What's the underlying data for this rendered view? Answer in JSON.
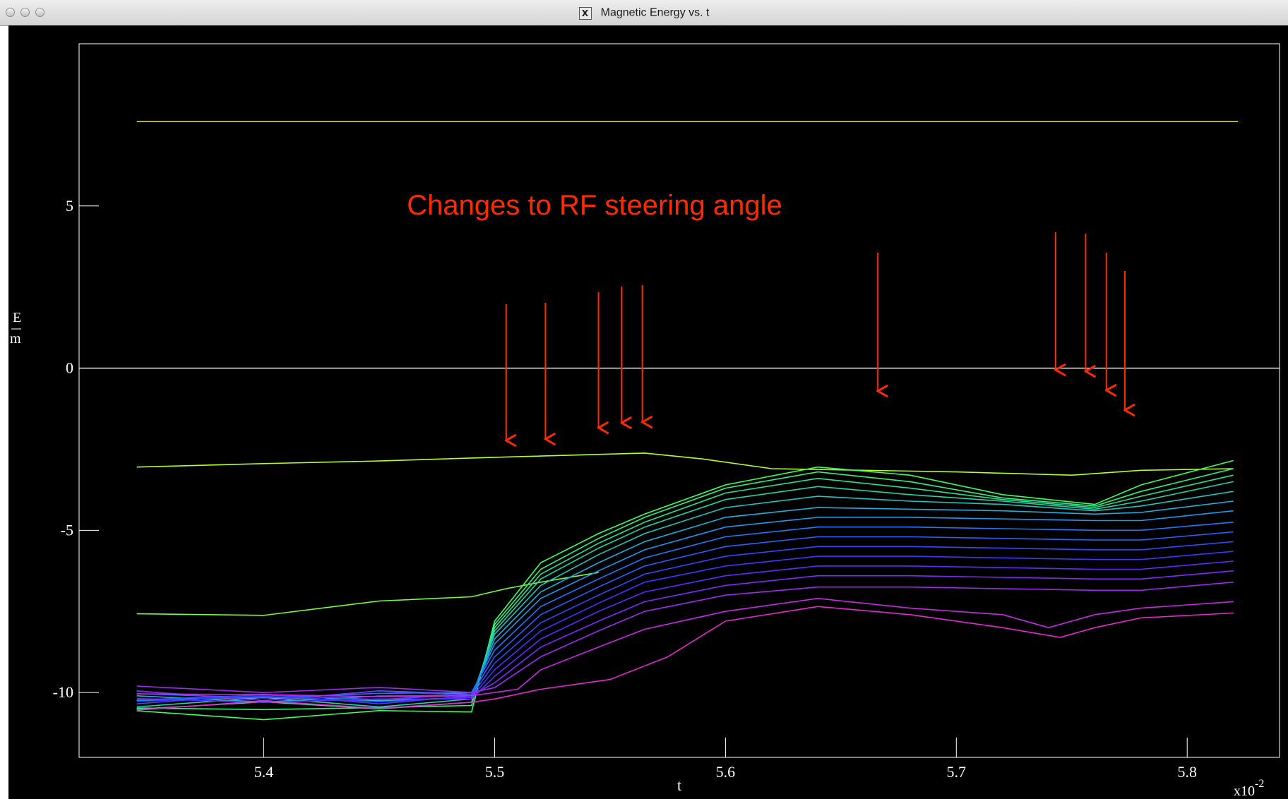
{
  "window": {
    "title": "Magnetic Energy vs. t",
    "icon": "x11-icon",
    "icon_glyph": "X",
    "buttons": [
      "close-button",
      "minimize-button",
      "zoom-button"
    ]
  },
  "annotation": {
    "text": "Changes to RF steering angle",
    "color": "#ff2a00",
    "arrows_at_t": [
      5.505,
      5.522,
      5.545,
      5.555,
      5.564,
      5.666,
      5.743,
      5.756,
      5.765,
      5.773
    ]
  },
  "chart_data": {
    "type": "line",
    "xlabel": "t",
    "ylabel_numerator": "E",
    "ylabel_denominator": "m",
    "x_multiplier": "x10",
    "x_multiplier_exp": "-2",
    "xlim": [
      5.32,
      5.84
    ],
    "ylim": [
      -12,
      10
    ],
    "xticks": [
      5.4,
      5.5,
      5.6,
      5.7,
      5.8
    ],
    "xtick_labels": [
      "5.4",
      "5.5",
      "5.6",
      "5.7",
      "5.8"
    ],
    "yticks": [
      -10,
      -5,
      0,
      5
    ],
    "ytick_labels": [
      "-10",
      "-5",
      "0",
      "5"
    ],
    "zero_line": true,
    "grid": false,
    "background": "#000000",
    "constant_lines": [
      {
        "y": 7.6,
        "color": "#e6e62a"
      },
      {
        "y": 0,
        "color": "#ffffff"
      }
    ],
    "series_note": "family of ~18 curves colored from green (top) through cyan and blue to magenta (bottom)",
    "series": [
      {
        "color": "#b4ff28",
        "x": [
          5.345,
          5.4,
          5.45,
          5.5,
          5.55,
          5.565,
          5.59,
          5.62,
          5.66,
          5.7,
          5.75,
          5.78,
          5.82
        ],
        "y": [
          -3.05,
          -2.95,
          -2.85,
          -2.75,
          -2.65,
          -2.62,
          -2.8,
          -3.1,
          -3.15,
          -3.2,
          -3.3,
          -3.15,
          -3.1
        ]
      },
      {
        "color": "#78ff3c",
        "x": [
          5.345,
          5.4,
          5.45,
          5.49,
          5.505,
          5.52,
          5.545
        ],
        "y": [
          -7.7,
          -7.5,
          -7.3,
          -7.05,
          -6.8,
          -6.6,
          -6.3
        ]
      },
      {
        "color": "#3cff5a",
        "x": [
          5.345,
          5.4,
          5.45,
          5.49,
          5.5,
          5.52,
          5.545,
          5.565,
          5.6,
          5.64,
          5.68,
          5.72,
          5.76,
          5.78,
          5.82
        ],
        "y": [
          -10.7,
          -10.7,
          -10.7,
          -10.6,
          -7.8,
          -6.0,
          -5.1,
          -4.5,
          -3.6,
          -3.05,
          -3.3,
          -3.9,
          -4.2,
          -3.6,
          -2.85
        ]
      },
      {
        "color": "#32f07a",
        "x": [
          5.345,
          5.4,
          5.45,
          5.49,
          5.5,
          5.52,
          5.545,
          5.565,
          5.6,
          5.64,
          5.68,
          5.72,
          5.76,
          5.78,
          5.82
        ],
        "y": [
          -10.5,
          -10.5,
          -10.5,
          -10.4,
          -7.9,
          -6.2,
          -5.25,
          -4.6,
          -3.7,
          -3.2,
          -3.5,
          -4.0,
          -4.25,
          -3.8,
          -3.1
        ]
      },
      {
        "color": "#28e090",
        "x": [
          5.345,
          5.4,
          5.45,
          5.49,
          5.5,
          5.52,
          5.545,
          5.565,
          5.6,
          5.64,
          5.68,
          5.72,
          5.76,
          5.78,
          5.82
        ],
        "y": [
          -10.4,
          -10.4,
          -10.4,
          -10.3,
          -8.0,
          -6.35,
          -5.4,
          -4.75,
          -3.85,
          -3.4,
          -3.7,
          -4.05,
          -4.3,
          -3.95,
          -3.3
        ]
      },
      {
        "color": "#22d2a8",
        "x": [
          5.345,
          5.4,
          5.45,
          5.49,
          5.5,
          5.52,
          5.545,
          5.565,
          5.6,
          5.64,
          5.68,
          5.72,
          5.76,
          5.78,
          5.82
        ],
        "y": [
          -10.3,
          -10.3,
          -10.3,
          -10.2,
          -8.1,
          -6.5,
          -5.55,
          -4.9,
          -4.05,
          -3.65,
          -3.9,
          -4.1,
          -4.35,
          -4.1,
          -3.5
        ]
      },
      {
        "color": "#1ec4c0",
        "x": [
          5.345,
          5.4,
          5.45,
          5.49,
          5.5,
          5.52,
          5.545,
          5.565,
          5.6,
          5.64,
          5.68,
          5.72,
          5.76,
          5.78,
          5.82
        ],
        "y": [
          -10.2,
          -10.2,
          -10.2,
          -10.15,
          -8.2,
          -6.7,
          -5.75,
          -5.1,
          -4.3,
          -3.95,
          -4.1,
          -4.2,
          -4.4,
          -4.25,
          -3.8
        ]
      },
      {
        "color": "#1eaee0",
        "x": [
          5.345,
          5.4,
          5.45,
          5.49,
          5.5,
          5.52,
          5.545,
          5.565,
          5.6,
          5.64,
          5.68,
          5.72,
          5.76,
          5.78,
          5.82
        ],
        "y": [
          -10.2,
          -10.2,
          -10.2,
          -10.1,
          -8.35,
          -6.9,
          -6.0,
          -5.35,
          -4.6,
          -4.3,
          -4.35,
          -4.4,
          -4.5,
          -4.45,
          -4.1
        ]
      },
      {
        "color": "#1e96f0",
        "x": [
          5.345,
          5.4,
          5.45,
          5.49,
          5.5,
          5.52,
          5.545,
          5.565,
          5.6,
          5.64,
          5.68,
          5.72,
          5.76,
          5.78,
          5.82
        ],
        "y": [
          -10.1,
          -10.1,
          -10.1,
          -10.05,
          -8.5,
          -7.1,
          -6.25,
          -5.6,
          -4.9,
          -4.6,
          -4.6,
          -4.65,
          -4.7,
          -4.7,
          -4.4
        ]
      },
      {
        "color": "#1e78ff",
        "x": [
          5.345,
          5.4,
          5.45,
          5.49,
          5.5,
          5.52,
          5.545,
          5.565,
          5.6,
          5.64,
          5.68,
          5.72,
          5.76,
          5.78,
          5.82
        ],
        "y": [
          -10.1,
          -10.1,
          -10.1,
          -10.0,
          -8.7,
          -7.35,
          -6.5,
          -5.85,
          -5.2,
          -4.9,
          -4.9,
          -4.95,
          -5.0,
          -5.0,
          -4.75
        ]
      },
      {
        "color": "#2860ff",
        "x": [
          5.345,
          5.4,
          5.45,
          5.49,
          5.5,
          5.52,
          5.545,
          5.565,
          5.6,
          5.64,
          5.68,
          5.72,
          5.76,
          5.78,
          5.82
        ],
        "y": [
          -10.15,
          -10.15,
          -10.15,
          -10.05,
          -8.9,
          -7.6,
          -6.75,
          -6.1,
          -5.5,
          -5.2,
          -5.2,
          -5.25,
          -5.3,
          -5.3,
          -5.05
        ]
      },
      {
        "color": "#3248ff",
        "x": [
          5.345,
          5.4,
          5.45,
          5.49,
          5.5,
          5.52,
          5.545,
          5.565,
          5.6,
          5.64,
          5.68,
          5.72,
          5.76,
          5.78,
          5.82
        ],
        "y": [
          -10.2,
          -10.2,
          -10.2,
          -10.1,
          -9.1,
          -7.85,
          -7.0,
          -6.35,
          -5.8,
          -5.5,
          -5.5,
          -5.55,
          -5.6,
          -5.6,
          -5.35
        ]
      },
      {
        "color": "#4632ff",
        "x": [
          5.345,
          5.4,
          5.45,
          5.49,
          5.5,
          5.52,
          5.545,
          5.565,
          5.6,
          5.64,
          5.68,
          5.72,
          5.76,
          5.78,
          5.82
        ],
        "y": [
          -10.2,
          -10.2,
          -10.2,
          -10.15,
          -9.3,
          -8.1,
          -7.25,
          -6.6,
          -6.1,
          -5.8,
          -5.8,
          -5.85,
          -5.9,
          -5.9,
          -5.65
        ]
      },
      {
        "color": "#6428ff",
        "x": [
          5.345,
          5.4,
          5.45,
          5.49,
          5.5,
          5.52,
          5.545,
          5.565,
          5.6,
          5.64,
          5.68,
          5.72,
          5.76,
          5.78,
          5.82
        ],
        "y": [
          -10.25,
          -10.25,
          -10.25,
          -10.2,
          -9.5,
          -8.35,
          -7.5,
          -6.9,
          -6.4,
          -6.1,
          -6.1,
          -6.15,
          -6.2,
          -6.2,
          -5.95
        ]
      },
      {
        "color": "#8228ff",
        "x": [
          5.345,
          5.4,
          5.45,
          5.49,
          5.5,
          5.52,
          5.545,
          5.565,
          5.6,
          5.64,
          5.68,
          5.72,
          5.76,
          5.78,
          5.82
        ],
        "y": [
          -10.1,
          -10.1,
          -10.1,
          -10.1,
          -9.7,
          -8.6,
          -7.8,
          -7.2,
          -6.7,
          -6.4,
          -6.4,
          -6.45,
          -6.5,
          -6.5,
          -6.25
        ]
      },
      {
        "color": "#a028f0",
        "x": [
          5.345,
          5.4,
          5.45,
          5.49,
          5.5,
          5.52,
          5.545,
          5.565,
          5.6,
          5.64,
          5.68,
          5.72,
          5.76,
          5.78,
          5.82
        ],
        "y": [
          -9.9,
          -9.9,
          -9.95,
          -10.0,
          -9.85,
          -8.9,
          -8.1,
          -7.5,
          -7.0,
          -6.75,
          -6.75,
          -6.8,
          -6.85,
          -6.85,
          -6.6
        ]
      },
      {
        "color": "#c828e6",
        "x": [
          5.345,
          5.4,
          5.45,
          5.49,
          5.51,
          5.52,
          5.545,
          5.565,
          5.6,
          5.64,
          5.68,
          5.72,
          5.74,
          5.76,
          5.78,
          5.82
        ],
        "y": [
          -10.0,
          -10.1,
          -10.1,
          -10.1,
          -9.9,
          -9.3,
          -8.6,
          -8.05,
          -7.5,
          -7.1,
          -7.4,
          -7.6,
          -8.0,
          -7.6,
          -7.4,
          -7.2
        ]
      },
      {
        "color": "#e628d2",
        "x": [
          5.345,
          5.4,
          5.45,
          5.49,
          5.5,
          5.52,
          5.55,
          5.575,
          5.6,
          5.64,
          5.68,
          5.72,
          5.745,
          5.76,
          5.78,
          5.82
        ],
        "y": [
          -10.4,
          -10.4,
          -10.35,
          -10.3,
          -10.2,
          -9.9,
          -9.6,
          -8.9,
          -7.8,
          -7.35,
          -7.6,
          -8.0,
          -8.3,
          -8.0,
          -7.7,
          -7.55
        ]
      }
    ]
  }
}
